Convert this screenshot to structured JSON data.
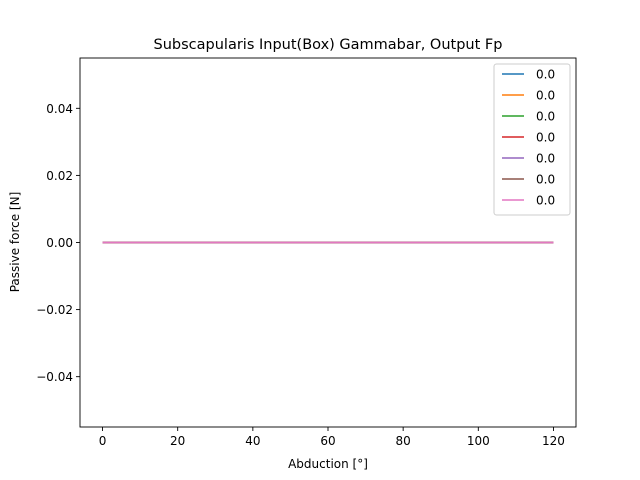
{
  "chart_data": {
    "type": "line",
    "title": "Subscapularis Input(Box) Gammabar, Output Fp",
    "xlabel": "Abduction [°]",
    "ylabel": "Passive force [N]",
    "xlim": [
      -6,
      126
    ],
    "ylim": [
      -0.055,
      0.055
    ],
    "xticks": [
      0,
      20,
      40,
      60,
      80,
      100,
      120
    ],
    "xtick_labels": [
      "0",
      "20",
      "40",
      "60",
      "80",
      "100",
      "120"
    ],
    "yticks": [
      -0.04,
      -0.02,
      0.0,
      0.02,
      0.04
    ],
    "ytick_labels": [
      "−0.04",
      "−0.02",
      "0.00",
      "0.02",
      "0.04"
    ],
    "grid": false,
    "legend_position": "top-right",
    "x": [
      0,
      20,
      40,
      60,
      80,
      100,
      120
    ],
    "series": [
      {
        "name": "0.0",
        "color": "#1f77b4",
        "values": [
          0,
          0,
          0,
          0,
          0,
          0,
          0
        ]
      },
      {
        "name": "0.0",
        "color": "#ff7f0e",
        "values": [
          0,
          0,
          0,
          0,
          0,
          0,
          0
        ]
      },
      {
        "name": "0.0",
        "color": "#2ca02c",
        "values": [
          0,
          0,
          0,
          0,
          0,
          0,
          0
        ]
      },
      {
        "name": "0.0",
        "color": "#d62728",
        "values": [
          0,
          0,
          0,
          0,
          0,
          0,
          0
        ]
      },
      {
        "name": "0.0",
        "color": "#9467bd",
        "values": [
          0,
          0,
          0,
          0,
          0,
          0,
          0
        ]
      },
      {
        "name": "0.0",
        "color": "#8c564b",
        "values": [
          0,
          0,
          0,
          0,
          0,
          0,
          0
        ]
      },
      {
        "name": "0.0",
        "color": "#e377c2",
        "values": [
          0,
          0,
          0,
          0,
          0,
          0,
          0
        ]
      }
    ]
  }
}
